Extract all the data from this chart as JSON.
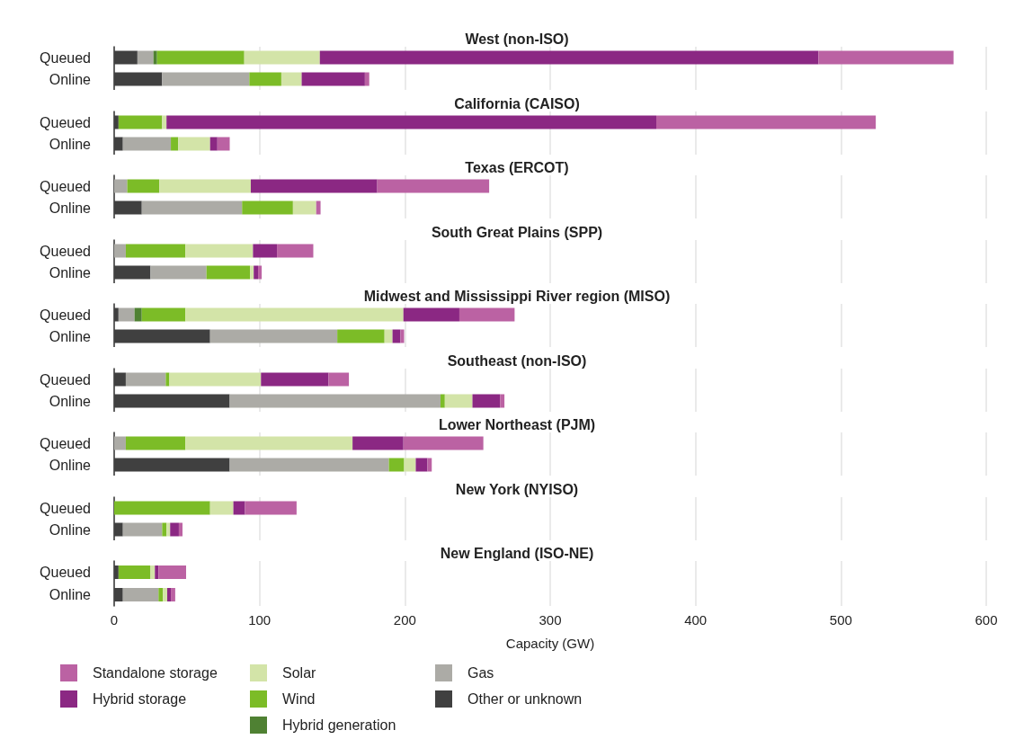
{
  "chart_data": [
    {
      "type": "bar",
      "orientation": "horizontal",
      "stacked": true,
      "title": "West (non-ISO)",
      "categories": [
        "Queued",
        "Online"
      ],
      "xlim": [
        0,
        600
      ],
      "xticks": [
        0,
        100,
        200,
        300,
        400,
        500,
        600
      ],
      "grid": "x",
      "tick_labels": "y",
      "series": [
        {
          "color": "#404040",
          "values": [
            16,
            33
          ]
        },
        {
          "color": "#acaba6",
          "values": [
            11,
            60
          ]
        },
        {
          "color": "#4f8133",
          "values": [
            2.5,
            null
          ]
        },
        {
          "color": "#7cbc27",
          "values": [
            60,
            22
          ]
        },
        {
          "color": "#d3e4a8",
          "values": [
            52,
            14
          ]
        },
        {
          "color": "#8b2883",
          "values": [
            343,
            43.5
          ]
        },
        {
          "color": "#bb62a3",
          "values": [
            93,
            3
          ]
        }
      ]
    },
    {
      "type": "bar",
      "orientation": "horizontal",
      "stacked": true,
      "title": "California (CAISO)",
      "categories": [
        "Queued",
        "Online"
      ],
      "xlim": [
        0,
        600
      ],
      "xticks": [
        0,
        100,
        200,
        300,
        400,
        500,
        600
      ],
      "grid": "x",
      "tick_labels": "y",
      "series": [
        {
          "color": "#404040",
          "values": [
            3,
            6
          ]
        },
        {
          "color": "#acaba6",
          "values": [
            null,
            33
          ]
        },
        {
          "color": "#7cbc27",
          "values": [
            30,
            5
          ]
        },
        {
          "color": "#d3e4a8",
          "values": [
            3,
            22
          ]
        },
        {
          "color": "#8b2883",
          "values": [
            337,
            5
          ]
        },
        {
          "color": "#bb62a3",
          "values": [
            151,
            8.5
          ]
        }
      ]
    },
    {
      "type": "bar",
      "orientation": "horizontal",
      "stacked": true,
      "title": "Texas (ERCOT)",
      "categories": [
        "Queued",
        "Online"
      ],
      "xlim": [
        0,
        600
      ],
      "xticks": [
        0,
        100,
        200,
        300,
        400,
        500,
        600
      ],
      "grid": "x",
      "tick_labels": "y",
      "series": [
        {
          "color": "#404040",
          "values": [
            null,
            19
          ]
        },
        {
          "color": "#acaba6",
          "values": [
            9,
            69
          ]
        },
        {
          "color": "#7cbc27",
          "values": [
            22,
            35
          ]
        },
        {
          "color": "#d3e4a8",
          "values": [
            63,
            16
          ]
        },
        {
          "color": "#8b2883",
          "values": [
            87,
            null
          ]
        },
        {
          "color": "#bb62a3",
          "values": [
            77,
            3
          ]
        }
      ]
    },
    {
      "type": "bar",
      "orientation": "horizontal",
      "stacked": true,
      "title": "South Great Plains (SPP)",
      "categories": [
        "Queued",
        "Online"
      ],
      "xlim": [
        0,
        600
      ],
      "xticks": [
        0,
        100,
        200,
        300,
        400,
        500,
        600
      ],
      "grid": "x",
      "tick_labels": "y",
      "series": [
        {
          "color": "#404040",
          "values": [
            null,
            25
          ]
        },
        {
          "color": "#acaba6",
          "values": [
            8,
            38.5
          ]
        },
        {
          "color": "#7cbc27",
          "values": [
            41,
            30
          ]
        },
        {
          "color": "#d3e4a8",
          "values": [
            46.5,
            2.5
          ]
        },
        {
          "color": "#8b2883",
          "values": [
            16.5,
            3
          ]
        },
        {
          "color": "#bb62a3",
          "values": [
            25,
            2.5
          ]
        }
      ]
    },
    {
      "type": "bar",
      "orientation": "horizontal",
      "stacked": true,
      "title": "Midwest and Mississippi River region (MISO)",
      "categories": [
        "Queued",
        "Online"
      ],
      "xlim": [
        0,
        600
      ],
      "xticks": [
        0,
        100,
        200,
        300,
        400,
        500,
        600
      ],
      "grid": "x",
      "tick_labels": "y",
      "series": [
        {
          "color": "#404040",
          "values": [
            3,
            66
          ]
        },
        {
          "color": "#acaba6",
          "values": [
            11,
            87.5
          ]
        },
        {
          "color": "#4f8133",
          "values": [
            5,
            null
          ]
        },
        {
          "color": "#7cbc27",
          "values": [
            30,
            32.5
          ]
        },
        {
          "color": "#d3e4a8",
          "values": [
            150,
            5.5
          ]
        },
        {
          "color": "#8b2883",
          "values": [
            38.5,
            5.5
          ]
        },
        {
          "color": "#bb62a3",
          "values": [
            38,
            2.5
          ]
        }
      ]
    },
    {
      "type": "bar",
      "orientation": "horizontal",
      "stacked": true,
      "title": "Southeast (non-ISO)",
      "categories": [
        "Queued",
        "Online"
      ],
      "xlim": [
        0,
        600
      ],
      "xticks": [
        0,
        100,
        200,
        300,
        400,
        500,
        600
      ],
      "grid": "x",
      "tick_labels": "y",
      "series": [
        {
          "color": "#404040",
          "values": [
            8,
            79.5
          ]
        },
        {
          "color": "#acaba6",
          "values": [
            27.5,
            145
          ]
        },
        {
          "color": "#7cbc27",
          "values": [
            2.5,
            3
          ]
        },
        {
          "color": "#d3e4a8",
          "values": [
            63,
            19
          ]
        },
        {
          "color": "#8b2883",
          "values": [
            46.5,
            19
          ]
        },
        {
          "color": "#bb62a3",
          "values": [
            14,
            3
          ]
        }
      ]
    },
    {
      "type": "bar",
      "orientation": "horizontal",
      "stacked": true,
      "title": "Lower Northeast (PJM)",
      "categories": [
        "Queued",
        "Online"
      ],
      "xlim": [
        0,
        600
      ],
      "xticks": [
        0,
        100,
        200,
        300,
        400,
        500,
        600
      ],
      "grid": "x",
      "tick_labels": "y",
      "series": [
        {
          "color": "#404040",
          "values": [
            null,
            79.5
          ]
        },
        {
          "color": "#acaba6",
          "values": [
            8,
            109.5
          ]
        },
        {
          "color": "#7cbc27",
          "values": [
            41,
            10.5
          ]
        },
        {
          "color": "#d3e4a8",
          "values": [
            115,
            8
          ]
        },
        {
          "color": "#8b2883",
          "values": [
            35,
            8
          ]
        },
        {
          "color": "#bb62a3",
          "values": [
            55,
            3
          ]
        }
      ]
    },
    {
      "type": "bar",
      "orientation": "horizontal",
      "stacked": true,
      "title": "New York (NYISO)",
      "categories": [
        "Queued",
        "Online"
      ],
      "xlim": [
        0,
        600
      ],
      "xticks": [
        0,
        100,
        200,
        300,
        400,
        500,
        600
      ],
      "grid": "x",
      "tick_labels": "y",
      "series": [
        {
          "color": "#404040",
          "values": [
            null,
            6
          ]
        },
        {
          "color": "#acaba6",
          "values": [
            null,
            27
          ]
        },
        {
          "color": "#7cbc27",
          "values": [
            66,
            3
          ]
        },
        {
          "color": "#d3e4a8",
          "values": [
            16,
            2.5
          ]
        },
        {
          "color": "#8b2883",
          "values": [
            8,
            6
          ]
        },
        {
          "color": "#bb62a3",
          "values": [
            35.5,
            2.5
          ]
        }
      ]
    },
    {
      "type": "bar",
      "orientation": "horizontal",
      "stacked": true,
      "title": "New England (ISO-NE)",
      "categories": [
        "Queued",
        "Online"
      ],
      "xlim": [
        0,
        600
      ],
      "xticks": [
        0,
        100,
        200,
        300,
        400,
        500,
        600
      ],
      "grid": "x",
      "xlabel": "Capacity (GW)",
      "legend": "bottom",
      "series": [
        {
          "name": "Other or unknown",
          "color": "#404040",
          "values": [
            3,
            6
          ]
        },
        {
          "name": "Gas",
          "color": "#acaba6",
          "values": [
            null,
            24.5
          ]
        },
        {
          "name": "Hybrid generation",
          "color": "#4f8133",
          "values": [
            null,
            null
          ]
        },
        {
          "name": "Wind",
          "color": "#7cbc27",
          "values": [
            22,
            3
          ]
        },
        {
          "name": "Solar",
          "color": "#d3e4a8",
          "values": [
            3,
            3
          ]
        },
        {
          "name": "Hybrid storage",
          "color": "#8b2883",
          "values": [
            2.5,
            2.5
          ]
        },
        {
          "name": "Standalone storage",
          "color": "#bb62a3",
          "values": [
            19,
            3
          ]
        }
      ]
    }
  ]
}
